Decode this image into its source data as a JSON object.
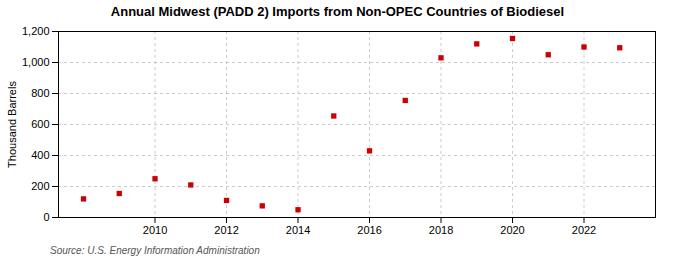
{
  "chart_data": {
    "type": "scatter",
    "title": "Annual Midwest (PADD 2) Imports from Non-OPEC Countries of Biodiesel",
    "ylabel": "Thousand Barrels",
    "source": "Source: U.S. Energy Information Administration",
    "x": [
      2008,
      2009,
      2010,
      2011,
      2012,
      2013,
      2014,
      2015,
      2016,
      2017,
      2018,
      2019,
      2020,
      2021,
      2022,
      2023
    ],
    "values": [
      120,
      155,
      250,
      210,
      110,
      75,
      50,
      655,
      430,
      755,
      1030,
      1120,
      1155,
      1050,
      1100,
      1095
    ],
    "color": "#cc0000",
    "marker": "square",
    "xlim": [
      2007.3,
      2024.0
    ],
    "xticks": [
      2010,
      2012,
      2014,
      2016,
      2018,
      2020,
      2022
    ],
    "ylim": [
      0,
      1200
    ],
    "yticks": [
      0,
      200,
      400,
      600,
      {
        "value": 800,
        "label": "800"
      },
      {
        "value": 1000,
        "label": "1,000"
      },
      {
        "value": 1200,
        "label": "1,200"
      }
    ],
    "grid": true
  }
}
